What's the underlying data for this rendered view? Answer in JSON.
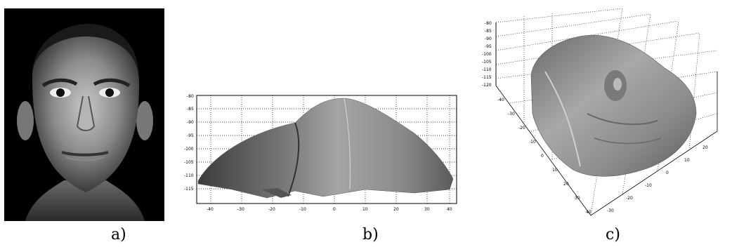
{
  "captions": {
    "a": "a)",
    "b": "b)",
    "c": "c)"
  },
  "panel_b": {
    "y_ticks": [
      "-80",
      "-85",
      "-90",
      "-95",
      "-100",
      "-105",
      "-110",
      "-115"
    ],
    "x_ticks": [
      "-40",
      "-30",
      "-20",
      "-10",
      "0",
      "10",
      "20",
      "30",
      "40"
    ]
  },
  "panel_c": {
    "z_ticks": [
      "-80",
      "-85",
      "-90",
      "-95",
      "-100",
      "-105",
      "-110",
      "-115",
      "-120"
    ],
    "y_ticks": [
      "-40",
      "-30",
      "-20",
      "-10",
      "0",
      "10",
      "20",
      "30",
      "40"
    ],
    "x_ticks": [
      "-30",
      "-20",
      "-10",
      "0",
      "10",
      "20"
    ]
  },
  "colors": {
    "background": "#ffffff",
    "photo_bg": "#000000",
    "surface": "#8a8a8a"
  }
}
